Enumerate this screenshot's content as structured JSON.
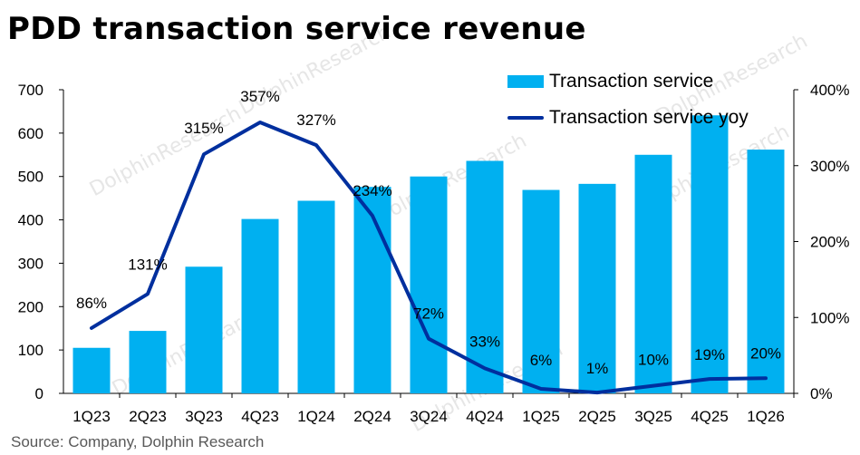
{
  "title": "PDD transaction service revenue",
  "source": "Source: Company, Dolphin Research",
  "watermark": "DolphinResearch",
  "colors": {
    "bar": "#00b0f0",
    "line": "#002f9e",
    "axis": "#000000"
  },
  "chart_data": {
    "type": "bar",
    "categories": [
      "1Q23",
      "2Q23",
      "3Q23",
      "4Q23",
      "1Q24",
      "2Q24",
      "3Q24",
      "4Q24",
      "1Q25",
      "2Q25",
      "3Q25",
      "4Q25",
      "1Q26"
    ],
    "series": [
      {
        "name": "Transaction service",
        "type": "bar",
        "axis": "left",
        "values": [
          105,
          144,
          292,
          402,
          444,
          476,
          500,
          536,
          469,
          483,
          550,
          641,
          562
        ]
      },
      {
        "name": "Transaction service yoy",
        "type": "line",
        "axis": "right",
        "values": [
          86,
          131,
          315,
          357,
          327,
          234,
          72,
          33,
          6,
          1,
          10,
          19,
          20
        ],
        "labels": [
          "86%",
          "131%",
          "315%",
          "357%",
          "327%",
          "234%",
          "72%",
          "33%",
          "6%",
          "1%",
          "10%",
          "19%",
          "20%"
        ]
      }
    ],
    "y_left": {
      "min": 0,
      "max": 700,
      "ticks": [
        "0",
        "100",
        "200",
        "300",
        "400",
        "500",
        "600",
        "700"
      ]
    },
    "y_right": {
      "min": 0,
      "max": 400,
      "ticks": [
        "0%",
        "100%",
        "200%",
        "300%",
        "400%"
      ]
    },
    "legend_position": "top-right",
    "grid": false
  }
}
